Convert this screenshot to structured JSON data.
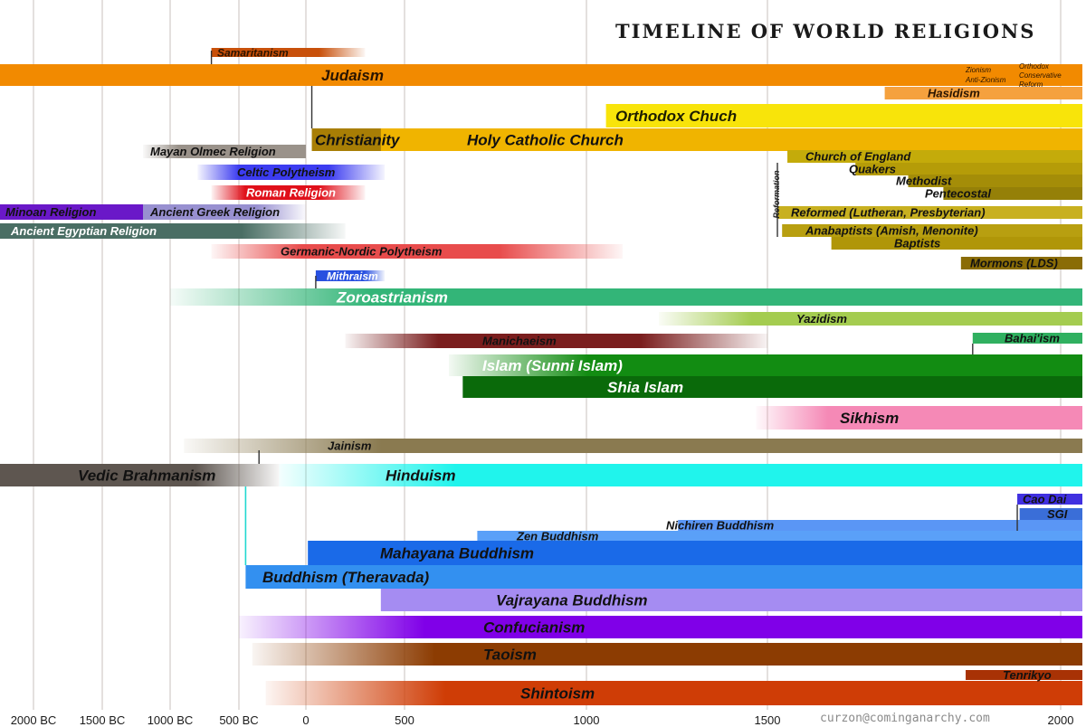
{
  "chart_data": {
    "type": "timeline",
    "title": "TIMELINE OF WORLD RELIGIONS",
    "xlabel": "",
    "ylabel": "",
    "xlim": [
      -2200,
      2020
    ],
    "x_ticks": [
      {
        "value": -2000,
        "label": "2000 BC"
      },
      {
        "value": -1500,
        "label": "1500 BC"
      },
      {
        "value": -1000,
        "label": "1000 BC"
      },
      {
        "value": -500,
        "label": "500 BC"
      },
      {
        "value": 0,
        "label": "0"
      },
      {
        "value": 500,
        "label": "500"
      },
      {
        "value": 1000,
        "label": "1000"
      },
      {
        "value": 1500,
        "label": "1500"
      },
      {
        "value": 2000,
        "label": "2000"
      }
    ],
    "grid": true,
    "series": [
      {
        "name": "Samaritanism",
        "start": -700,
        "end": 300,
        "fade_end": true,
        "color": "#c8500a",
        "text_color": "#2a1400",
        "size": "small"
      },
      {
        "name": "Judaism",
        "start": -2200,
        "end": 2020,
        "color": "#f28a00",
        "text_color": "#2a1400",
        "size": "large"
      },
      {
        "name": "Hasidism",
        "start": 1700,
        "end": 2020,
        "color": "#f5a13e",
        "text_color": "#2a1400",
        "size": "medium"
      },
      {
        "name": "Orthodox Chuch",
        "start": 1054,
        "end": 2020,
        "color": "#f8e40a",
        "text_color": "#1e1e00",
        "size": "large"
      },
      {
        "name": "Christianity",
        "start": 30,
        "end": 2020,
        "color": "#a87e05",
        "text_color": "#111111",
        "size": "large"
      },
      {
        "name": "Holy Catholic Church",
        "start": 380,
        "end": 2020,
        "color": "#f0b400",
        "text_color": "#111111",
        "size": "large"
      },
      {
        "name": "Mayan Olmec Religion",
        "start": -1200,
        "end": 0,
        "fade_start": true,
        "color": "#9a928a",
        "text_color": "#111111",
        "size": "medium"
      },
      {
        "name": "Celtic Polytheism",
        "start": -800,
        "end": 400,
        "fade_both": true,
        "color": "#3c3cf0",
        "text_color": "#111111",
        "size": "medium"
      },
      {
        "name": "Roman Religion",
        "start": -700,
        "end": 300,
        "fade_both": true,
        "color": "#e0101a",
        "text_color": "#ffffff",
        "size": "medium"
      },
      {
        "name": "Minoan Religion",
        "start": -2200,
        "end": -1000,
        "color": "#6a18c8",
        "text_color": "#111111",
        "size": "medium"
      },
      {
        "name": "Ancient Greek Religion",
        "start": -1200,
        "end": 0,
        "fade_end": true,
        "color": "#9890d0",
        "text_color": "#111111",
        "size": "medium"
      },
      {
        "name": "Ancient Egyptian Religion",
        "start": -2200,
        "end": 200,
        "fade_end": true,
        "color": "#4a6e64",
        "text_color": "#ffffff",
        "size": "medium"
      },
      {
        "name": "Germanic-Nordic Polytheism",
        "start": -700,
        "end": 1100,
        "fade_both": true,
        "color": "#e84c4c",
        "text_color": "#111111",
        "size": "medium"
      },
      {
        "name": "Mithraism",
        "start": 50,
        "end": 400,
        "fade_end": true,
        "color": "#2850e0",
        "text_color": "#ffffff",
        "size": "small"
      },
      {
        "name": "Zoroastrianism",
        "start": -1000,
        "end": 2020,
        "fade_start": true,
        "color": "#33b578",
        "text_color": "#ffffff",
        "size": "large"
      },
      {
        "name": "Yazidism",
        "start": 1200,
        "end": 2020,
        "fade_start": true,
        "color": "#a4cc50",
        "text_color": "#111111",
        "size": "medium"
      },
      {
        "name": "Manichaeism",
        "start": 200,
        "end": 1500,
        "fade_both": true,
        "color": "#7a1e1e",
        "text_color": "#111111",
        "size": "medium"
      },
      {
        "name": "Bahai'ism",
        "start": 1850,
        "end": 2020,
        "color": "#30b060",
        "text_color": "#111111",
        "size": "medium"
      },
      {
        "name": "Islam (Sunni Islam)",
        "start": 622,
        "end": 2020,
        "fade_start": true,
        "color": "#128c12",
        "text_color": "#ffffff",
        "size": "large"
      },
      {
        "name": "Shia Islam",
        "start": 660,
        "end": 2020,
        "color": "#0a6a0a",
        "text_color": "#ffffff",
        "size": "large"
      },
      {
        "name": "Sikhism",
        "start": 1469,
        "end": 2020,
        "fade_start": true,
        "color": "#f589b6",
        "text_color": "#111111",
        "size": "large"
      },
      {
        "name": "Jainism",
        "start": -900,
        "end": 2020,
        "fade_start": true,
        "color": "#8a7a50",
        "text_color": "#111111",
        "size": "medium"
      },
      {
        "name": "Vedic Brahmanism",
        "start": -2200,
        "end": -200,
        "fade_end": true,
        "color": "#5e5650",
        "text_color": "#111111",
        "size": "large"
      },
      {
        "name": "Hinduism",
        "start": -200,
        "end": 2020,
        "fade_start": true,
        "color": "#20f4ec",
        "text_color": "#111111",
        "size": "large"
      },
      {
        "name": "Cao Dai",
        "start": 1926,
        "end": 2020,
        "color": "#4030e0",
        "text_color": "#111111",
        "size": "medium"
      },
      {
        "name": "SGI",
        "start": 1930,
        "end": 2020,
        "color": "#3a6ed8",
        "text_color": "#111111",
        "size": "medium"
      },
      {
        "name": "Nichiren Buddhism",
        "start": 1253,
        "end": 2020,
        "color": "#5a96f5",
        "text_color": "#111111",
        "size": "medium"
      },
      {
        "name": "Zen Buddhism",
        "start": 700,
        "end": 2020,
        "color": "#5aa0f8",
        "text_color": "#111111",
        "size": "medium"
      },
      {
        "name": "Mahayana Buddhism",
        "start": 10,
        "end": 2020,
        "color": "#1a6ae8",
        "text_color": "#111111",
        "size": "large"
      },
      {
        "name": "Buddhism (Theravada)",
        "start": -450,
        "end": 2020,
        "color": "#3390f0",
        "text_color": "#111111",
        "size": "large"
      },
      {
        "name": "Vajrayana Buddhism",
        "start": 380,
        "end": 2020,
        "color": "#a58cf2",
        "text_color": "#111111",
        "size": "large"
      },
      {
        "name": "Confucianism",
        "start": -500,
        "end": 2020,
        "fade_start": true,
        "color": "#8000e8",
        "text_color": "#111111",
        "size": "large"
      },
      {
        "name": "Taoism",
        "start": -400,
        "end": 2020,
        "fade_start": true,
        "color": "#8c3c02",
        "text_color": "#111111",
        "size": "large"
      },
      {
        "name": "Tenrikyo",
        "start": 1838,
        "end": 2020,
        "color": "#a83205",
        "text_color": "#111111",
        "size": "medium"
      },
      {
        "name": "Shintoism",
        "start": -300,
        "end": 2020,
        "fade_start": true,
        "color": "#cf3d06",
        "text_color": "#111111",
        "size": "large"
      }
    ],
    "protestant": {
      "label": "Reformation",
      "bars": [
        {
          "name": "Church of England",
          "start": 1534,
          "end": 2020,
          "color": "#c4ab0a"
        },
        {
          "name": "Quakers",
          "start": 1650,
          "end": 2020,
          "color": "#b59c08"
        },
        {
          "name": "Methodist",
          "start": 1740,
          "end": 2020,
          "color": "#a48d08"
        },
        {
          "name": "Pentecostal",
          "start": 1800,
          "end": 2020,
          "color": "#958008"
        },
        {
          "name": "Reformed (Lutheran, Presbyterian)",
          "start": 1517,
          "end": 2020,
          "color": "#c8b020"
        },
        {
          "name": "Anabaptists (Amish, Menonite)",
          "start": 1525,
          "end": 2020,
          "color": "#b89f10"
        },
        {
          "name": "Baptists",
          "start": 1609,
          "end": 2020,
          "color": "#b09608"
        },
        {
          "name": "Mormons (LDS)",
          "start": 1830,
          "end": 2020,
          "color": "#8a6c06"
        }
      ]
    },
    "annotations": [
      "Zionism",
      "Anti-Zionism",
      "Orthodox",
      "Conservative",
      "Reform"
    ]
  },
  "credit": "curzon@cominganarchy.com"
}
